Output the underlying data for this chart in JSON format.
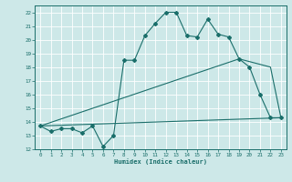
{
  "title": "",
  "xlabel": "Humidex (Indice chaleur)",
  "ylabel": "",
  "bg_color": "#cde8e8",
  "grid_color": "#ffffff",
  "line_color": "#1a6e6a",
  "xlim": [
    -0.5,
    23.5
  ],
  "ylim": [
    12,
    22.5
  ],
  "xticks": [
    0,
    1,
    2,
    3,
    4,
    5,
    6,
    7,
    8,
    9,
    10,
    11,
    12,
    13,
    14,
    15,
    16,
    17,
    18,
    19,
    20,
    21,
    22,
    23
  ],
  "yticks": [
    12,
    13,
    14,
    15,
    16,
    17,
    18,
    19,
    20,
    21,
    22
  ],
  "line1_x": [
    0,
    1,
    2,
    3,
    4,
    5,
    6,
    7,
    8,
    9,
    10,
    11,
    12,
    13,
    14,
    15,
    16,
    17,
    18,
    19,
    20,
    21,
    22,
    23
  ],
  "line1_y": [
    13.7,
    13.3,
    13.5,
    13.5,
    13.2,
    13.7,
    12.2,
    13.0,
    18.5,
    18.5,
    20.3,
    21.2,
    22.0,
    22.0,
    20.3,
    20.2,
    21.5,
    20.4,
    20.2,
    18.6,
    18.0,
    16.0,
    14.3,
    14.3
  ],
  "line2_x": [
    0,
    23
  ],
  "line2_y": [
    13.7,
    14.3
  ],
  "line3_x": [
    0,
    19,
    22,
    23
  ],
  "line3_y": [
    13.7,
    18.6,
    18.0,
    14.3
  ]
}
